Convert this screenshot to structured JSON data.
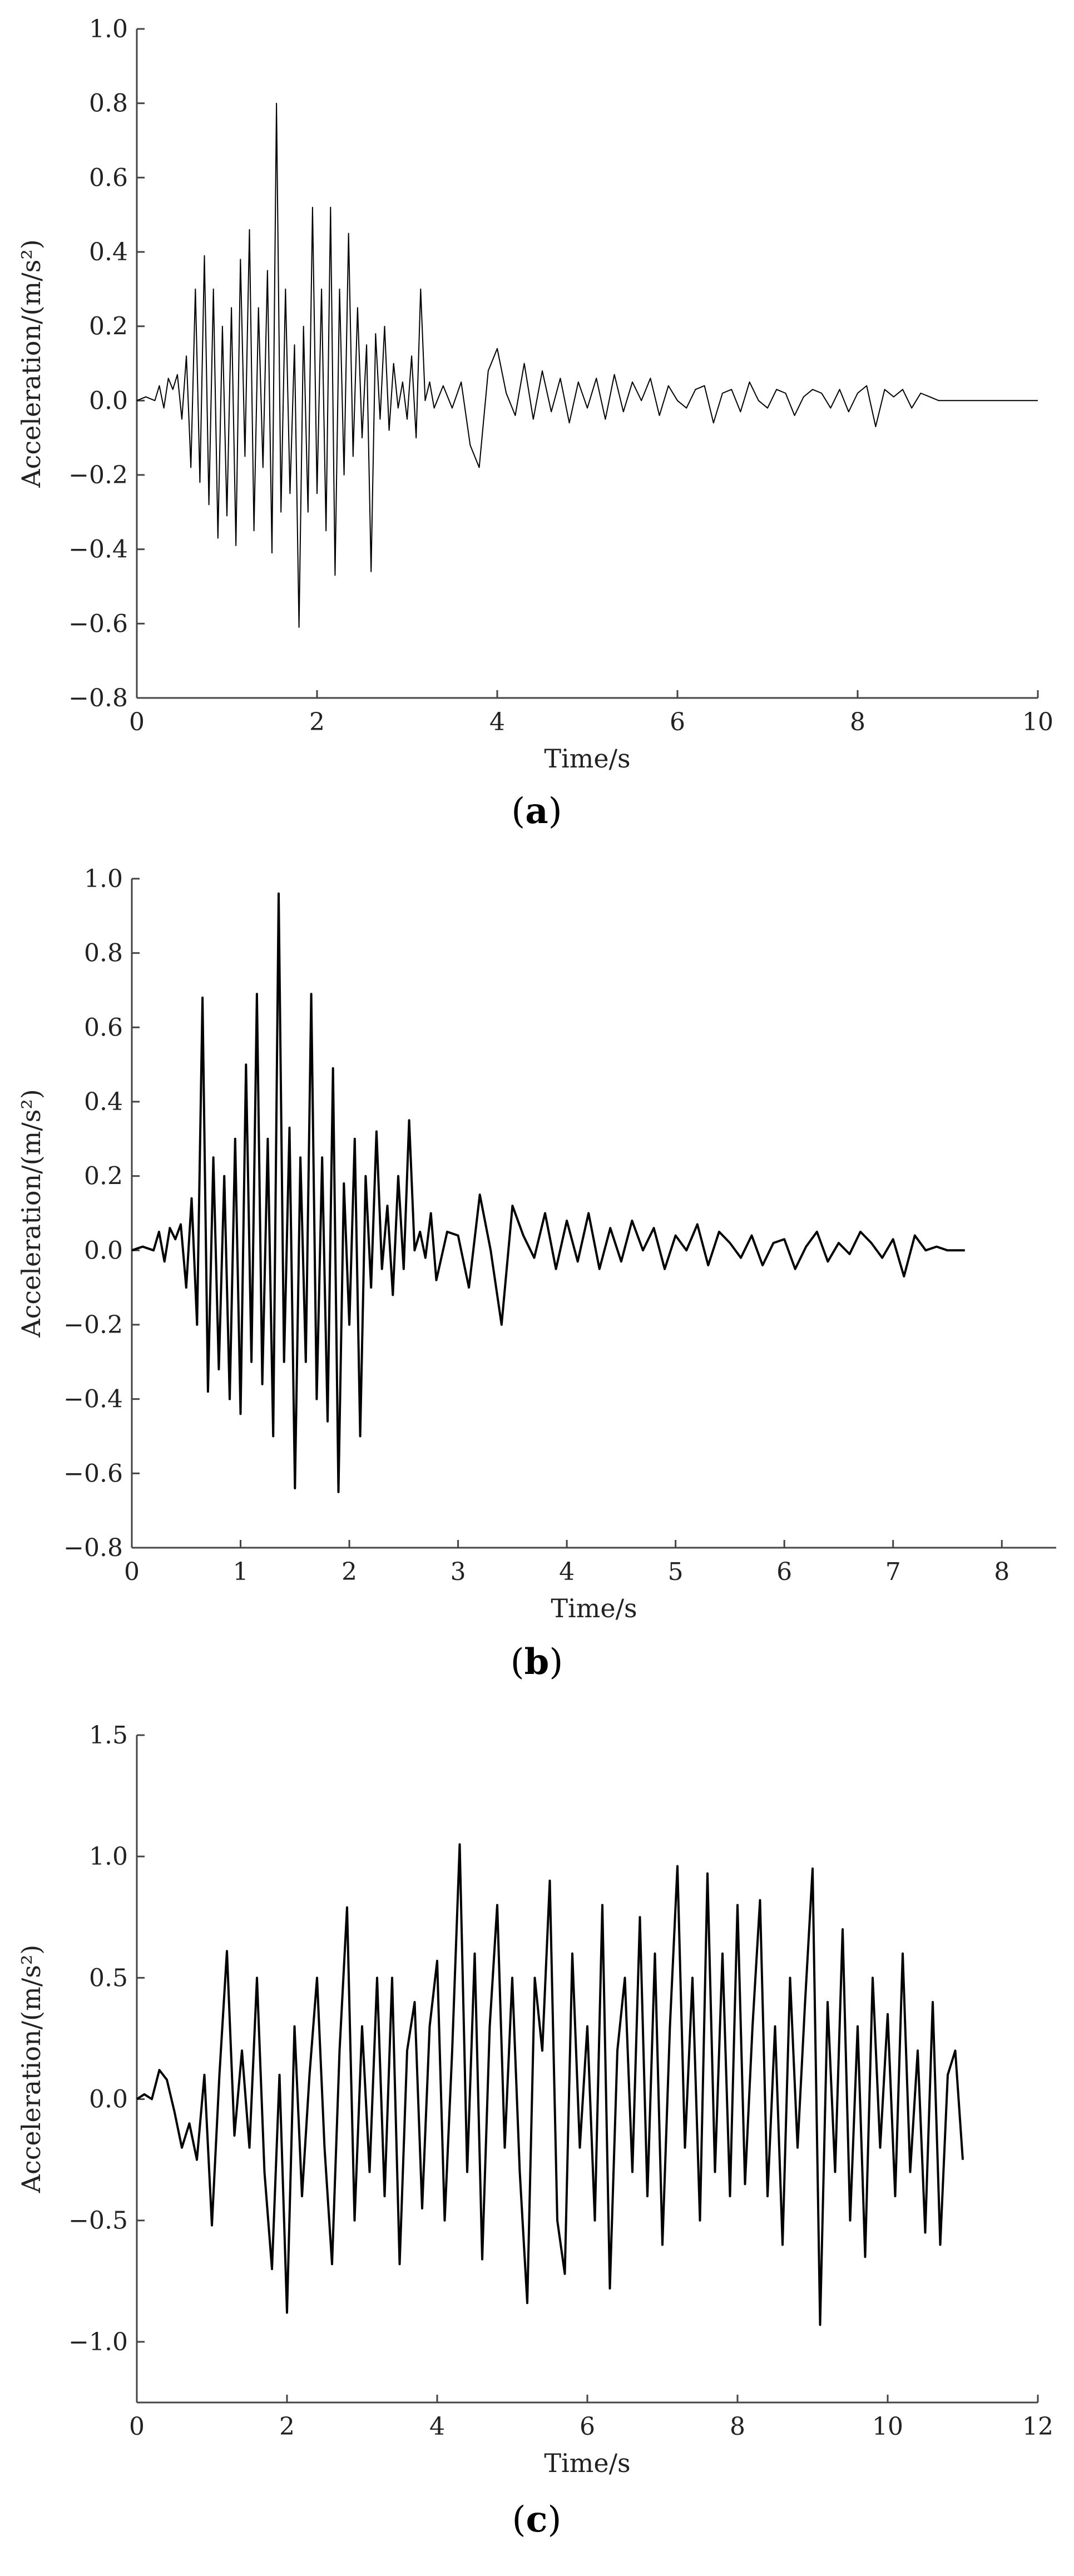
{
  "figures": [
    {
      "caption_letter": "a"
    },
    {
      "caption_letter": "b"
    },
    {
      "caption_letter": "c"
    }
  ],
  "chart_data": [
    {
      "type": "line",
      "xlabel": "Time/s",
      "ylabel": "Acceleration/(m/s²)",
      "xlim": [
        0,
        10
      ],
      "ylim": [
        -0.8,
        1.0
      ],
      "xticks": [
        0,
        2,
        4,
        6,
        8,
        10
      ],
      "xtick_labels": [
        "0",
        "2",
        "4",
        "6",
        "8",
        "10"
      ],
      "yticks": [
        -0.8,
        -0.6,
        -0.4,
        -0.2,
        0.0,
        0.2,
        0.4,
        0.6,
        0.8,
        1.0
      ],
      "ytick_labels": [
        "−0.8",
        "−0.6",
        "−0.4",
        "−0.2",
        "0.0",
        "0.2",
        "0.4",
        "0.6",
        "0.8",
        "1.0"
      ],
      "grid": false,
      "series": [
        {
          "color": "#000000",
          "x": [
            0.0,
            0.1,
            0.2,
            0.25,
            0.3,
            0.35,
            0.4,
            0.45,
            0.5,
            0.55,
            0.6,
            0.65,
            0.7,
            0.75,
            0.8,
            0.85,
            0.9,
            0.95,
            1.0,
            1.05,
            1.1,
            1.15,
            1.2,
            1.25,
            1.3,
            1.35,
            1.4,
            1.45,
            1.5,
            1.55,
            1.6,
            1.65,
            1.7,
            1.75,
            1.8,
            1.85,
            1.9,
            1.95,
            2.0,
            2.05,
            2.1,
            2.15,
            2.2,
            2.25,
            2.3,
            2.35,
            2.4,
            2.45,
            2.5,
            2.55,
            2.6,
            2.65,
            2.7,
            2.75,
            2.8,
            2.85,
            2.9,
            2.95,
            3.0,
            3.05,
            3.1,
            3.15,
            3.2,
            3.25,
            3.3,
            3.4,
            3.5,
            3.6,
            3.7,
            3.8,
            3.9,
            4.0,
            4.1,
            4.2,
            4.3,
            4.4,
            4.5,
            4.6,
            4.7,
            4.8,
            4.9,
            5.0,
            5.1,
            5.2,
            5.3,
            5.4,
            5.5,
            5.6,
            5.7,
            5.8,
            5.9,
            6.0,
            6.1,
            6.2,
            6.3,
            6.4,
            6.5,
            6.6,
            6.7,
            6.8,
            6.9,
            7.0,
            7.1,
            7.2,
            7.3,
            7.4,
            7.5,
            7.6,
            7.7,
            7.8,
            7.9,
            8.0,
            8.1,
            8.2,
            8.3,
            8.4,
            8.5,
            8.6,
            8.7,
            8.8,
            8.9,
            9.0,
            9.5,
            10.0
          ],
          "y": [
            0.0,
            0.01,
            0.0,
            0.04,
            -0.02,
            0.06,
            0.03,
            0.07,
            -0.05,
            0.12,
            -0.18,
            0.3,
            -0.22,
            0.39,
            -0.28,
            0.3,
            -0.37,
            0.2,
            -0.31,
            0.25,
            -0.39,
            0.38,
            -0.15,
            0.46,
            -0.35,
            0.25,
            -0.18,
            0.35,
            -0.41,
            0.8,
            -0.3,
            0.3,
            -0.25,
            0.15,
            -0.61,
            0.2,
            -0.3,
            0.52,
            -0.25,
            0.3,
            -0.35,
            0.52,
            -0.47,
            0.3,
            -0.2,
            0.45,
            -0.15,
            0.25,
            -0.1,
            0.15,
            -0.46,
            0.18,
            -0.05,
            0.2,
            -0.08,
            0.1,
            -0.02,
            0.05,
            -0.05,
            0.12,
            -0.1,
            0.3,
            0.0,
            0.05,
            -0.02,
            0.04,
            -0.02,
            0.05,
            -0.12,
            -0.18,
            0.08,
            0.14,
            0.02,
            -0.04,
            0.1,
            -0.05,
            0.08,
            -0.03,
            0.06,
            -0.06,
            0.05,
            -0.02,
            0.06,
            -0.05,
            0.07,
            -0.03,
            0.05,
            0.0,
            0.06,
            -0.04,
            0.04,
            0.0,
            -0.02,
            0.03,
            0.04,
            -0.06,
            0.02,
            0.03,
            -0.03,
            0.05,
            0.0,
            -0.02,
            0.03,
            0.02,
            -0.04,
            0.01,
            0.03,
            0.02,
            -0.02,
            0.03,
            -0.03,
            0.02,
            0.04,
            -0.07,
            0.03,
            0.01,
            0.03,
            -0.02,
            0.02,
            0.01,
            0.0,
            0.0,
            0.0,
            0.0
          ]
        }
      ]
    },
    {
      "type": "line",
      "xlabel": "Time/s",
      "ylabel": "Acceleration/(m/s²)",
      "xlim": [
        0,
        8.5
      ],
      "ylim": [
        -0.8,
        1.0
      ],
      "xticks": [
        0,
        1,
        2,
        3,
        4,
        5,
        6,
        7,
        8
      ],
      "xtick_labels": [
        "0",
        "1",
        "2",
        "3",
        "4",
        "5",
        "6",
        "7",
        "8"
      ],
      "yticks": [
        -0.8,
        -0.6,
        -0.4,
        -0.2,
        0.0,
        0.2,
        0.4,
        0.6,
        0.8,
        1.0
      ],
      "ytick_labels": [
        "−0.8",
        "−0.6",
        "−0.4",
        "−0.2",
        "0.0",
        "0.2",
        "0.4",
        "0.6",
        "0.8",
        "1.0"
      ],
      "grid": false,
      "series": [
        {
          "color": "#000000",
          "x": [
            0.0,
            0.1,
            0.2,
            0.25,
            0.3,
            0.35,
            0.4,
            0.45,
            0.5,
            0.55,
            0.6,
            0.65,
            0.7,
            0.75,
            0.8,
            0.85,
            0.9,
            0.95,
            1.0,
            1.05,
            1.1,
            1.15,
            1.2,
            1.25,
            1.3,
            1.35,
            1.4,
            1.45,
            1.5,
            1.55,
            1.6,
            1.65,
            1.7,
            1.75,
            1.8,
            1.85,
            1.9,
            1.95,
            2.0,
            2.05,
            2.1,
            2.15,
            2.2,
            2.25,
            2.3,
            2.35,
            2.4,
            2.45,
            2.5,
            2.55,
            2.6,
            2.65,
            2.7,
            2.75,
            2.8,
            2.9,
            3.0,
            3.1,
            3.2,
            3.3,
            3.4,
            3.5,
            3.6,
            3.7,
            3.8,
            3.9,
            4.0,
            4.1,
            4.2,
            4.3,
            4.4,
            4.5,
            4.6,
            4.7,
            4.8,
            4.9,
            5.0,
            5.1,
            5.2,
            5.3,
            5.4,
            5.5,
            5.6,
            5.7,
            5.8,
            5.9,
            6.0,
            6.1,
            6.2,
            6.3,
            6.4,
            6.5,
            6.6,
            6.7,
            6.8,
            6.9,
            7.0,
            7.1,
            7.2,
            7.3,
            7.4,
            7.5,
            7.66
          ],
          "y": [
            0.0,
            0.01,
            0.0,
            0.05,
            -0.03,
            0.06,
            0.03,
            0.07,
            -0.1,
            0.14,
            -0.2,
            0.68,
            -0.38,
            0.25,
            -0.32,
            0.2,
            -0.4,
            0.3,
            -0.44,
            0.5,
            -0.3,
            0.69,
            -0.36,
            0.3,
            -0.5,
            0.96,
            -0.3,
            0.33,
            -0.64,
            0.25,
            -0.3,
            0.69,
            -0.4,
            0.25,
            -0.46,
            0.49,
            -0.65,
            0.18,
            -0.2,
            0.3,
            -0.5,
            0.2,
            -0.1,
            0.32,
            -0.05,
            0.12,
            -0.12,
            0.2,
            -0.05,
            0.35,
            0.0,
            0.05,
            -0.02,
            0.1,
            -0.08,
            0.05,
            0.04,
            -0.1,
            0.15,
            0.0,
            -0.2,
            0.12,
            0.04,
            -0.02,
            0.1,
            -0.05,
            0.08,
            -0.03,
            0.1,
            -0.05,
            0.06,
            -0.03,
            0.08,
            0.0,
            0.06,
            -0.05,
            0.04,
            0.0,
            0.07,
            -0.04,
            0.05,
            0.02,
            -0.02,
            0.04,
            -0.04,
            0.02,
            0.03,
            -0.05,
            0.01,
            0.05,
            -0.03,
            0.02,
            -0.01,
            0.05,
            0.02,
            -0.02,
            0.03,
            -0.07,
            0.04,
            0.0,
            0.01,
            0.0,
            0.0
          ]
        }
      ]
    },
    {
      "type": "line",
      "xlabel": "Time/s",
      "ylabel": "Acceleration/(m/s²)",
      "xlim": [
        0,
        12
      ],
      "ylim": [
        -1.25,
        1.5
      ],
      "xticks": [
        0,
        2,
        4,
        6,
        8,
        10,
        12
      ],
      "xtick_labels": [
        "0",
        "2",
        "4",
        "6",
        "8",
        "10",
        "12"
      ],
      "yticks": [
        -1.0,
        -0.5,
        0.0,
        0.5,
        1.0,
        1.5
      ],
      "ytick_labels": [
        "−1.0",
        "−0.5",
        "0.0",
        "0.5",
        "1.0",
        "1.5"
      ],
      "grid": false,
      "series": [
        {
          "color": "#000000",
          "x": [
            0.0,
            0.1,
            0.2,
            0.3,
            0.4,
            0.5,
            0.6,
            0.7,
            0.8,
            0.9,
            1.0,
            1.1,
            1.2,
            1.3,
            1.4,
            1.5,
            1.6,
            1.7,
            1.8,
            1.9,
            2.0,
            2.1,
            2.2,
            2.3,
            2.4,
            2.5,
            2.6,
            2.7,
            2.8,
            2.9,
            3.0,
            3.1,
            3.2,
            3.3,
            3.4,
            3.5,
            3.6,
            3.7,
            3.8,
            3.9,
            4.0,
            4.1,
            4.2,
            4.3,
            4.4,
            4.5,
            4.6,
            4.7,
            4.8,
            4.9,
            5.0,
            5.1,
            5.2,
            5.3,
            5.4,
            5.5,
            5.6,
            5.7,
            5.8,
            5.9,
            6.0,
            6.1,
            6.2,
            6.3,
            6.4,
            6.5,
            6.6,
            6.7,
            6.8,
            6.9,
            7.0,
            7.1,
            7.2,
            7.3,
            7.4,
            7.5,
            7.6,
            7.7,
            7.8,
            7.9,
            8.0,
            8.1,
            8.2,
            8.3,
            8.4,
            8.5,
            8.6,
            8.7,
            8.8,
            8.9,
            9.0,
            9.1,
            9.2,
            9.3,
            9.4,
            9.5,
            9.6,
            9.7,
            9.8,
            9.9,
            10.0,
            10.1,
            10.2,
            10.3,
            10.4,
            10.5,
            10.6,
            10.7,
            10.8,
            10.9,
            11.0
          ],
          "y": [
            0.0,
            0.02,
            0.0,
            0.12,
            0.08,
            -0.05,
            -0.2,
            -0.1,
            -0.25,
            0.1,
            -0.52,
            0.1,
            0.61,
            -0.15,
            0.2,
            -0.2,
            0.5,
            -0.3,
            -0.7,
            0.1,
            -0.88,
            0.3,
            -0.4,
            0.1,
            0.5,
            -0.2,
            -0.68,
            0.2,
            0.79,
            -0.5,
            0.3,
            -0.3,
            0.5,
            -0.4,
            0.5,
            -0.68,
            0.2,
            0.4,
            -0.45,
            0.3,
            0.57,
            -0.5,
            0.2,
            1.05,
            -0.3,
            0.6,
            -0.66,
            0.3,
            0.8,
            -0.2,
            0.5,
            -0.3,
            -0.84,
            0.5,
            0.2,
            0.9,
            -0.5,
            -0.72,
            0.6,
            -0.2,
            0.3,
            -0.5,
            0.8,
            -0.78,
            0.2,
            0.5,
            -0.3,
            0.75,
            -0.4,
            0.6,
            -0.6,
            0.3,
            0.96,
            -0.2,
            0.5,
            -0.5,
            0.93,
            -0.3,
            0.6,
            -0.4,
            0.8,
            -0.35,
            0.3,
            0.82,
            -0.4,
            0.3,
            -0.6,
            0.5,
            -0.2,
            0.4,
            0.95,
            -0.93,
            0.4,
            -0.3,
            0.7,
            -0.5,
            0.3,
            -0.65,
            0.5,
            -0.2,
            0.35,
            -0.4,
            0.6,
            -0.3,
            0.2,
            -0.55,
            0.4,
            -0.6,
            0.1,
            0.2,
            -0.25
          ]
        }
      ]
    }
  ]
}
